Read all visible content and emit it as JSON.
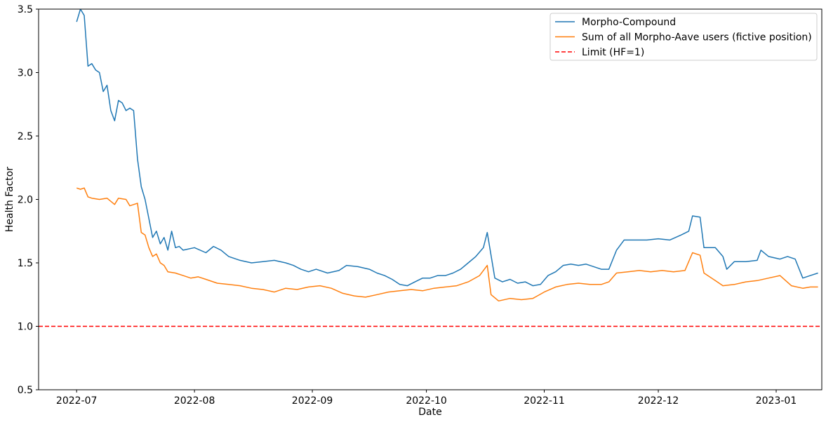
{
  "chart_data": {
    "type": "line",
    "title": "",
    "xlabel": "Date",
    "ylabel": "Health Factor",
    "ylim": [
      0.5,
      3.5
    ],
    "xlim": [
      "2022-06-21",
      "2023-01-13"
    ],
    "y_ticks": [
      "0.5",
      "1.0",
      "1.5",
      "2.0",
      "2.5",
      "3.0",
      "3.5"
    ],
    "x_ticks": [
      "2022-07",
      "2022-08",
      "2022-09",
      "2022-10",
      "2022-11",
      "2022-12",
      "2023-01"
    ],
    "grid": false,
    "legend_position": "top-right",
    "series": [
      {
        "name": "Morpho-Compound",
        "color": "#1f77b4",
        "style": "solid",
        "points": [
          [
            "2022-07-01",
            3.4
          ],
          [
            "2022-07-02",
            3.5
          ],
          [
            "2022-07-03",
            3.45
          ],
          [
            "2022-07-04",
            3.05
          ],
          [
            "2022-07-05",
            3.07
          ],
          [
            "2022-07-06",
            3.02
          ],
          [
            "2022-07-07",
            3.0
          ],
          [
            "2022-07-08",
            2.85
          ],
          [
            "2022-07-09",
            2.9
          ],
          [
            "2022-07-10",
            2.7
          ],
          [
            "2022-07-11",
            2.62
          ],
          [
            "2022-07-12",
            2.78
          ],
          [
            "2022-07-13",
            2.76
          ],
          [
            "2022-07-14",
            2.7
          ],
          [
            "2022-07-15",
            2.72
          ],
          [
            "2022-07-16",
            2.7
          ],
          [
            "2022-07-17",
            2.32
          ],
          [
            "2022-07-18",
            2.1
          ],
          [
            "2022-07-19",
            2.0
          ],
          [
            "2022-07-20",
            1.85
          ],
          [
            "2022-07-21",
            1.7
          ],
          [
            "2022-07-22",
            1.75
          ],
          [
            "2022-07-23",
            1.65
          ],
          [
            "2022-07-24",
            1.7
          ],
          [
            "2022-07-25",
            1.6
          ],
          [
            "2022-07-26",
            1.75
          ],
          [
            "2022-07-27",
            1.62
          ],
          [
            "2022-07-28",
            1.63
          ],
          [
            "2022-07-29",
            1.6
          ],
          [
            "2022-08-01",
            1.62
          ],
          [
            "2022-08-04",
            1.58
          ],
          [
            "2022-08-06",
            1.63
          ],
          [
            "2022-08-08",
            1.6
          ],
          [
            "2022-08-10",
            1.55
          ],
          [
            "2022-08-13",
            1.52
          ],
          [
            "2022-08-16",
            1.5
          ],
          [
            "2022-08-19",
            1.51
          ],
          [
            "2022-08-22",
            1.52
          ],
          [
            "2022-08-25",
            1.5
          ],
          [
            "2022-08-27",
            1.48
          ],
          [
            "2022-08-29",
            1.45
          ],
          [
            "2022-08-31",
            1.43
          ],
          [
            "2022-09-02",
            1.45
          ],
          [
            "2022-09-05",
            1.42
          ],
          [
            "2022-09-08",
            1.44
          ],
          [
            "2022-09-10",
            1.48
          ],
          [
            "2022-09-13",
            1.47
          ],
          [
            "2022-09-16",
            1.45
          ],
          [
            "2022-09-18",
            1.42
          ],
          [
            "2022-09-20",
            1.4
          ],
          [
            "2022-09-22",
            1.37
          ],
          [
            "2022-09-24",
            1.33
          ],
          [
            "2022-09-26",
            1.32
          ],
          [
            "2022-09-28",
            1.35
          ],
          [
            "2022-09-30",
            1.38
          ],
          [
            "2022-10-02",
            1.38
          ],
          [
            "2022-10-04",
            1.4
          ],
          [
            "2022-10-06",
            1.4
          ],
          [
            "2022-10-08",
            1.42
          ],
          [
            "2022-10-10",
            1.45
          ],
          [
            "2022-10-12",
            1.5
          ],
          [
            "2022-10-14",
            1.55
          ],
          [
            "2022-10-16",
            1.62
          ],
          [
            "2022-10-17",
            1.74
          ],
          [
            "2022-10-18",
            1.56
          ],
          [
            "2022-10-19",
            1.38
          ],
          [
            "2022-10-21",
            1.35
          ],
          [
            "2022-10-23",
            1.37
          ],
          [
            "2022-10-25",
            1.34
          ],
          [
            "2022-10-27",
            1.35
          ],
          [
            "2022-10-29",
            1.32
          ],
          [
            "2022-10-31",
            1.33
          ],
          [
            "2022-11-02",
            1.4
          ],
          [
            "2022-11-04",
            1.43
          ],
          [
            "2022-11-06",
            1.48
          ],
          [
            "2022-11-08",
            1.49
          ],
          [
            "2022-11-10",
            1.48
          ],
          [
            "2022-11-12",
            1.49
          ],
          [
            "2022-11-14",
            1.47
          ],
          [
            "2022-11-16",
            1.45
          ],
          [
            "2022-11-18",
            1.45
          ],
          [
            "2022-11-20",
            1.6
          ],
          [
            "2022-11-22",
            1.68
          ],
          [
            "2022-11-25",
            1.68
          ],
          [
            "2022-11-28",
            1.68
          ],
          [
            "2022-12-01",
            1.69
          ],
          [
            "2022-12-04",
            1.68
          ],
          [
            "2022-12-07",
            1.72
          ],
          [
            "2022-12-09",
            1.75
          ],
          [
            "2022-12-10",
            1.87
          ],
          [
            "2022-12-12",
            1.86
          ],
          [
            "2022-12-13",
            1.62
          ],
          [
            "2022-12-16",
            1.62
          ],
          [
            "2022-12-18",
            1.55
          ],
          [
            "2022-12-19",
            1.45
          ],
          [
            "2022-12-21",
            1.51
          ],
          [
            "2022-12-24",
            1.51
          ],
          [
            "2022-12-27",
            1.52
          ],
          [
            "2022-12-28",
            1.6
          ],
          [
            "2022-12-30",
            1.55
          ],
          [
            "2023-01-02",
            1.53
          ],
          [
            "2023-01-04",
            1.55
          ],
          [
            "2023-01-06",
            1.53
          ],
          [
            "2023-01-08",
            1.38
          ],
          [
            "2023-01-10",
            1.4
          ],
          [
            "2023-01-12",
            1.42
          ]
        ]
      },
      {
        "name": "Sum of all Morpho-Aave users (fictive position)",
        "color": "#ff7f0e",
        "style": "solid",
        "points": [
          [
            "2022-07-01",
            2.09
          ],
          [
            "2022-07-02",
            2.08
          ],
          [
            "2022-07-03",
            2.09
          ],
          [
            "2022-07-04",
            2.02
          ],
          [
            "2022-07-05",
            2.01
          ],
          [
            "2022-07-07",
            2.0
          ],
          [
            "2022-07-09",
            2.01
          ],
          [
            "2022-07-11",
            1.96
          ],
          [
            "2022-07-12",
            2.01
          ],
          [
            "2022-07-14",
            2.0
          ],
          [
            "2022-07-15",
            1.95
          ],
          [
            "2022-07-17",
            1.97
          ],
          [
            "2022-07-18",
            1.74
          ],
          [
            "2022-07-19",
            1.72
          ],
          [
            "2022-07-20",
            1.62
          ],
          [
            "2022-07-21",
            1.55
          ],
          [
            "2022-07-22",
            1.57
          ],
          [
            "2022-07-23",
            1.5
          ],
          [
            "2022-07-24",
            1.48
          ],
          [
            "2022-07-25",
            1.43
          ],
          [
            "2022-07-27",
            1.42
          ],
          [
            "2022-07-29",
            1.4
          ],
          [
            "2022-07-31",
            1.38
          ],
          [
            "2022-08-02",
            1.39
          ],
          [
            "2022-08-04",
            1.37
          ],
          [
            "2022-08-07",
            1.34
          ],
          [
            "2022-08-10",
            1.33
          ],
          [
            "2022-08-13",
            1.32
          ],
          [
            "2022-08-16",
            1.3
          ],
          [
            "2022-08-19",
            1.29
          ],
          [
            "2022-08-22",
            1.27
          ],
          [
            "2022-08-25",
            1.3
          ],
          [
            "2022-08-28",
            1.29
          ],
          [
            "2022-08-31",
            1.31
          ],
          [
            "2022-09-03",
            1.32
          ],
          [
            "2022-09-06",
            1.3
          ],
          [
            "2022-09-09",
            1.26
          ],
          [
            "2022-09-12",
            1.24
          ],
          [
            "2022-09-15",
            1.23
          ],
          [
            "2022-09-18",
            1.25
          ],
          [
            "2022-09-21",
            1.27
          ],
          [
            "2022-09-24",
            1.28
          ],
          [
            "2022-09-27",
            1.29
          ],
          [
            "2022-09-30",
            1.28
          ],
          [
            "2022-10-03",
            1.3
          ],
          [
            "2022-10-06",
            1.31
          ],
          [
            "2022-10-09",
            1.32
          ],
          [
            "2022-10-12",
            1.35
          ],
          [
            "2022-10-15",
            1.4
          ],
          [
            "2022-10-17",
            1.48
          ],
          [
            "2022-10-18",
            1.25
          ],
          [
            "2022-10-20",
            1.2
          ],
          [
            "2022-10-23",
            1.22
          ],
          [
            "2022-10-26",
            1.21
          ],
          [
            "2022-10-29",
            1.22
          ],
          [
            "2022-11-01",
            1.27
          ],
          [
            "2022-11-04",
            1.31
          ],
          [
            "2022-11-07",
            1.33
          ],
          [
            "2022-11-10",
            1.34
          ],
          [
            "2022-11-13",
            1.33
          ],
          [
            "2022-11-16",
            1.33
          ],
          [
            "2022-11-18",
            1.35
          ],
          [
            "2022-11-20",
            1.42
          ],
          [
            "2022-11-23",
            1.43
          ],
          [
            "2022-11-26",
            1.44
          ],
          [
            "2022-11-29",
            1.43
          ],
          [
            "2022-12-02",
            1.44
          ],
          [
            "2022-12-05",
            1.43
          ],
          [
            "2022-12-08",
            1.44
          ],
          [
            "2022-12-10",
            1.58
          ],
          [
            "2022-12-12",
            1.56
          ],
          [
            "2022-12-13",
            1.42
          ],
          [
            "2022-12-16",
            1.36
          ],
          [
            "2022-12-18",
            1.32
          ],
          [
            "2022-12-21",
            1.33
          ],
          [
            "2022-12-24",
            1.35
          ],
          [
            "2022-12-27",
            1.36
          ],
          [
            "2022-12-30",
            1.38
          ],
          [
            "2023-01-02",
            1.4
          ],
          [
            "2023-01-05",
            1.32
          ],
          [
            "2023-01-08",
            1.3
          ],
          [
            "2023-01-10",
            1.31
          ],
          [
            "2023-01-12",
            1.31
          ]
        ]
      },
      {
        "name": "Limit (HF=1)",
        "color": "#ff0000",
        "style": "dashed",
        "points": [
          [
            "2022-06-21",
            1.0
          ],
          [
            "2023-01-13",
            1.0
          ]
        ]
      }
    ]
  }
}
